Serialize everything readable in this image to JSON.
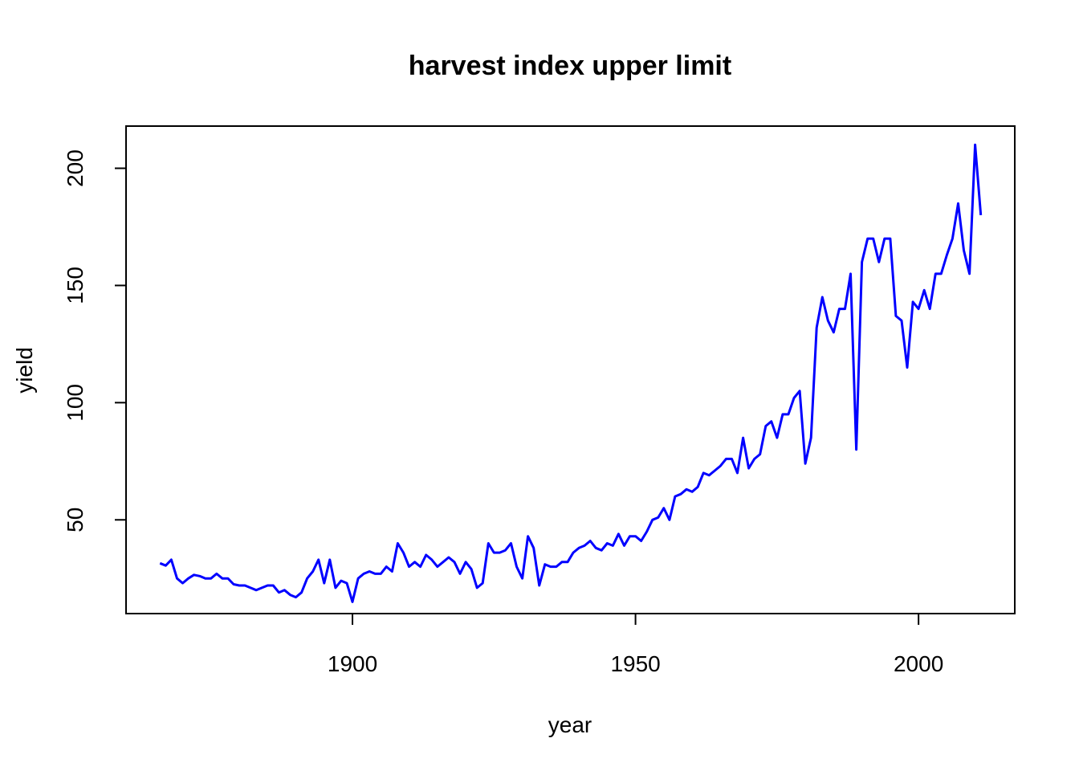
{
  "chart_data": {
    "type": "line",
    "title": "harvest index upper limit",
    "xlabel": "year",
    "ylabel": "yield",
    "xlim": [
      1860,
      2017
    ],
    "ylim": [
      10,
      218
    ],
    "grid": false,
    "legend": "none",
    "x_ticks": [
      1900,
      1950,
      2000
    ],
    "y_ticks": [
      50,
      100,
      150,
      200
    ],
    "series": [
      {
        "color": "#0000ff",
        "x": [
          1866,
          1867,
          1868,
          1869,
          1870,
          1871,
          1872,
          1873,
          1874,
          1875,
          1876,
          1877,
          1878,
          1879,
          1880,
          1881,
          1882,
          1883,
          1884,
          1885,
          1886,
          1887,
          1888,
          1889,
          1890,
          1891,
          1892,
          1893,
          1894,
          1895,
          1896,
          1897,
          1898,
          1899,
          1900,
          1901,
          1902,
          1903,
          1904,
          1905,
          1906,
          1907,
          1908,
          1909,
          1910,
          1911,
          1912,
          1913,
          1914,
          1915,
          1916,
          1917,
          1918,
          1919,
          1920,
          1921,
          1922,
          1923,
          1924,
          1925,
          1926,
          1927,
          1928,
          1929,
          1930,
          1931,
          1932,
          1933,
          1934,
          1935,
          1936,
          1937,
          1938,
          1939,
          1940,
          1941,
          1942,
          1943,
          1944,
          1945,
          1946,
          1947,
          1948,
          1949,
          1950,
          1951,
          1952,
          1953,
          1954,
          1955,
          1956,
          1957,
          1958,
          1959,
          1960,
          1961,
          1962,
          1963,
          1964,
          1965,
          1966,
          1967,
          1968,
          1969,
          1970,
          1971,
          1972,
          1973,
          1974,
          1975,
          1976,
          1977,
          1978,
          1979,
          1980,
          1981,
          1982,
          1983,
          1984,
          1985,
          1986,
          1987,
          1988,
          1989,
          1990,
          1991,
          1992,
          1993,
          1994,
          1995,
          1996,
          1997,
          1998,
          1999,
          2000,
          2001,
          2002,
          2003,
          2004,
          2005,
          2006,
          2007,
          2008,
          2009,
          2010,
          2011
        ],
        "y": [
          31.5,
          30.5,
          33,
          25,
          23,
          25,
          26.5,
          26,
          25,
          25,
          27,
          25,
          25,
          22.5,
          22,
          22,
          21,
          20,
          21,
          22,
          22,
          19,
          20,
          18,
          17,
          19,
          25,
          28,
          33,
          23,
          33,
          21,
          24,
          23,
          15,
          25,
          27,
          28,
          27,
          27,
          30,
          28,
          40,
          36,
          30,
          32,
          30,
          35,
          33,
          30,
          32,
          34,
          32,
          27,
          32,
          29,
          21,
          23,
          40,
          36,
          36,
          37,
          40,
          30,
          25,
          43,
          38,
          22,
          31,
          30,
          30,
          32,
          32,
          36,
          38,
          39,
          41,
          38,
          37,
          40,
          39,
          44,
          39,
          43,
          43,
          41,
          45,
          50,
          51,
          55,
          50,
          60,
          61,
          63,
          62,
          64,
          70,
          69,
          71,
          73,
          76,
          76,
          70,
          85,
          72,
          76,
          78,
          90,
          92,
          85,
          95,
          95,
          102,
          105,
          74,
          85,
          132,
          145,
          135,
          130,
          140,
          140,
          155,
          80,
          160,
          170,
          170,
          160,
          170,
          170,
          137,
          135,
          115,
          143,
          140,
          148,
          140,
          155,
          155,
          163,
          170,
          185,
          165,
          155,
          210,
          180
        ]
      }
    ]
  }
}
